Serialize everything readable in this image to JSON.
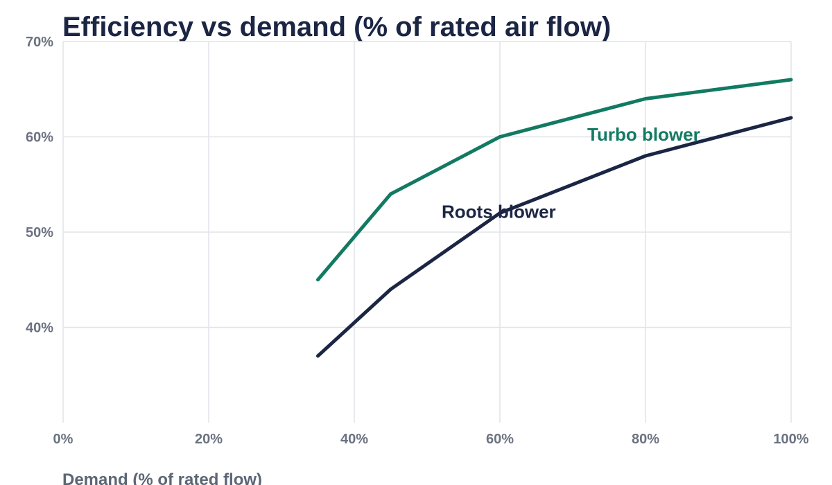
{
  "chart_data": {
    "type": "line",
    "title": "Efficiency vs demand (% of rated air flow)",
    "xlabel": "Demand (% of rated flow)",
    "ylabel": "",
    "xlim": [
      0,
      100
    ],
    "ylim": [
      30,
      70
    ],
    "x_ticks": [
      0,
      20,
      40,
      60,
      80,
      100
    ],
    "x_tick_labels": [
      "0%",
      "20%",
      "40%",
      "60%",
      "80%",
      "100%"
    ],
    "y_ticks": [
      40,
      50,
      60,
      70
    ],
    "y_tick_labels": [
      "40%",
      "50%",
      "60%",
      "70%"
    ],
    "grid": true,
    "legend": "direct labels",
    "series": [
      {
        "name": "Turbo blower",
        "color": "#127A62",
        "x": [
          35,
          45,
          60,
          80,
          100
        ],
        "y": [
          45,
          54,
          60,
          64,
          66
        ],
        "label_at": [
          72,
          59.6
        ]
      },
      {
        "name": "Roots blower",
        "color": "#1B2544",
        "x": [
          35,
          45,
          60,
          80,
          100
        ],
        "y": [
          37,
          44,
          52,
          58,
          62
        ],
        "label_at": [
          52,
          51.5
        ]
      }
    ]
  },
  "colors": {
    "title": "#1B2544",
    "ticks": "#6B7280",
    "axis_title": "#5C6675",
    "grid": "#E2E4E8"
  }
}
